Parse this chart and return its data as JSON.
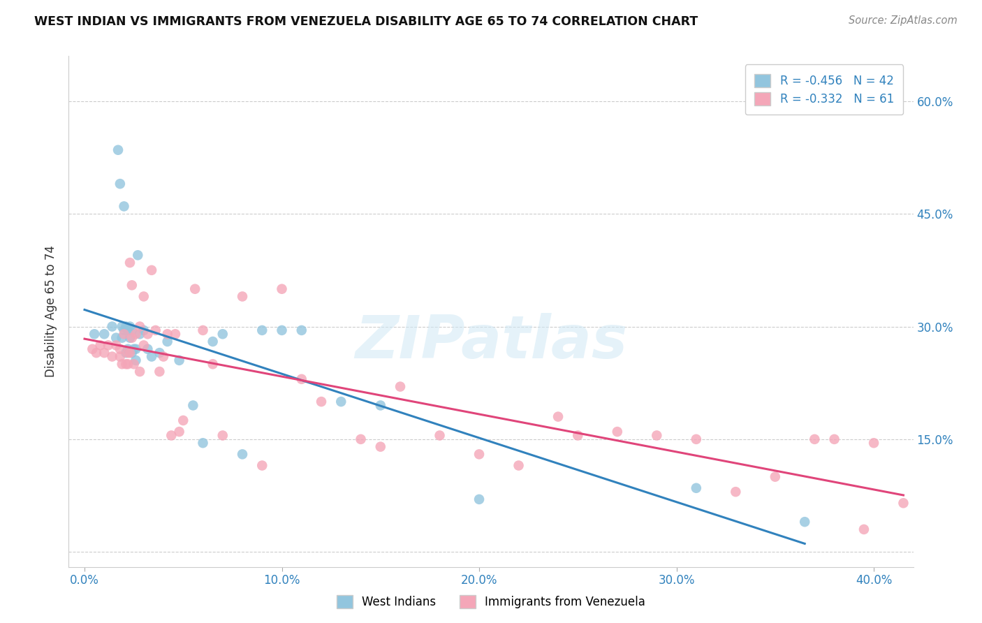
{
  "title": "WEST INDIAN VS IMMIGRANTS FROM VENEZUELA DISABILITY AGE 65 TO 74 CORRELATION CHART",
  "source": "Source: ZipAtlas.com",
  "ylabel": "Disability Age 65 to 74",
  "x_ticks": [
    0.0,
    0.1,
    0.2,
    0.3,
    0.4
  ],
  "x_tick_labels": [
    "0.0%",
    "10.0%",
    "20.0%",
    "30.0%",
    "40.0%"
  ],
  "y_ticks": [
    0.0,
    0.15,
    0.3,
    0.45,
    0.6
  ],
  "y_tick_labels": [
    "",
    "15.0%",
    "30.0%",
    "45.0%",
    "60.0%"
  ],
  "xlim": [
    -0.008,
    0.42
  ],
  "ylim": [
    -0.02,
    0.66
  ],
  "west_indians_R": -0.456,
  "west_indians_N": 42,
  "venezuela_R": -0.332,
  "venezuela_N": 61,
  "blue_color": "#92c5de",
  "blue_line_color": "#3182bd",
  "pink_color": "#f4a6b8",
  "pink_line_color": "#e0457a",
  "watermark": "ZIPatlas",
  "legend_R_N_color": "#3182bd",
  "west_indians_x": [
    0.005,
    0.01,
    0.014,
    0.016,
    0.017,
    0.018,
    0.019,
    0.019,
    0.02,
    0.02,
    0.021,
    0.021,
    0.022,
    0.022,
    0.023,
    0.023,
    0.024,
    0.024,
    0.025,
    0.026,
    0.026,
    0.027,
    0.028,
    0.03,
    0.032,
    0.034,
    0.038,
    0.042,
    0.048,
    0.055,
    0.06,
    0.065,
    0.07,
    0.08,
    0.09,
    0.1,
    0.11,
    0.13,
    0.15,
    0.2,
    0.31,
    0.365
  ],
  "west_indians_y": [
    0.29,
    0.29,
    0.3,
    0.285,
    0.535,
    0.49,
    0.3,
    0.285,
    0.46,
    0.295,
    0.3,
    0.265,
    0.295,
    0.27,
    0.3,
    0.285,
    0.295,
    0.265,
    0.27,
    0.255,
    0.27,
    0.395,
    0.29,
    0.295,
    0.27,
    0.26,
    0.265,
    0.28,
    0.255,
    0.195,
    0.145,
    0.28,
    0.29,
    0.13,
    0.295,
    0.295,
    0.295,
    0.2,
    0.195,
    0.07,
    0.085,
    0.04
  ],
  "venezuela_x": [
    0.004,
    0.006,
    0.008,
    0.01,
    0.012,
    0.014,
    0.016,
    0.018,
    0.018,
    0.019,
    0.02,
    0.021,
    0.022,
    0.022,
    0.023,
    0.023,
    0.024,
    0.024,
    0.025,
    0.026,
    0.028,
    0.028,
    0.03,
    0.03,
    0.032,
    0.034,
    0.036,
    0.038,
    0.04,
    0.042,
    0.044,
    0.046,
    0.048,
    0.05,
    0.056,
    0.06,
    0.065,
    0.07,
    0.08,
    0.09,
    0.1,
    0.11,
    0.12,
    0.14,
    0.15,
    0.16,
    0.18,
    0.2,
    0.22,
    0.24,
    0.25,
    0.27,
    0.29,
    0.31,
    0.33,
    0.35,
    0.37,
    0.38,
    0.395,
    0.4,
    0.415
  ],
  "venezuela_y": [
    0.27,
    0.265,
    0.275,
    0.265,
    0.275,
    0.26,
    0.275,
    0.26,
    0.27,
    0.25,
    0.29,
    0.25,
    0.265,
    0.25,
    0.385,
    0.265,
    0.355,
    0.285,
    0.25,
    0.29,
    0.24,
    0.3,
    0.275,
    0.34,
    0.29,
    0.375,
    0.295,
    0.24,
    0.26,
    0.29,
    0.155,
    0.29,
    0.16,
    0.175,
    0.35,
    0.295,
    0.25,
    0.155,
    0.34,
    0.115,
    0.35,
    0.23,
    0.2,
    0.15,
    0.14,
    0.22,
    0.155,
    0.13,
    0.115,
    0.18,
    0.155,
    0.16,
    0.155,
    0.15,
    0.08,
    0.1,
    0.15,
    0.15,
    0.03,
    0.145,
    0.065
  ],
  "blue_line_x": [
    0.0,
    0.365
  ],
  "blue_line_y_intercept": 0.295,
  "blue_line_slope": -0.695,
  "pink_line_x": [
    0.0,
    0.415
  ],
  "pink_line_y_intercept": 0.265,
  "pink_line_slope": -0.32
}
